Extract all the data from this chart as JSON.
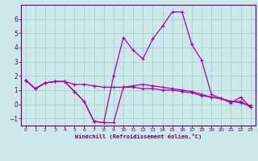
{
  "xlabel": "Windchill (Refroidissement éolien,°C)",
  "bg_color": "#cce8e8",
  "line_color": "#aa00aa",
  "grid_color": "#99cccc",
  "axis_color": "#660066",
  "spine_color": "#660066",
  "xlim": [
    -0.5,
    23.5
  ],
  "ylim": [
    -1.5,
    7.0
  ],
  "xticks": [
    0,
    1,
    2,
    3,
    4,
    5,
    6,
    7,
    8,
    9,
    10,
    11,
    12,
    13,
    14,
    15,
    16,
    17,
    18,
    19,
    20,
    21,
    22,
    23
  ],
  "yticks": [
    -1,
    0,
    1,
    2,
    3,
    4,
    5,
    6
  ],
  "x": [
    0,
    1,
    2,
    3,
    4,
    5,
    6,
    7,
    8,
    9,
    10,
    11,
    12,
    13,
    14,
    15,
    16,
    17,
    18,
    19,
    20,
    21,
    22,
    23
  ],
  "line1": [
    1.7,
    1.1,
    1.5,
    1.6,
    1.6,
    0.9,
    0.2,
    -1.2,
    -1.3,
    -1.3,
    1.2,
    1.3,
    1.4,
    1.3,
    1.2,
    1.1,
    1.0,
    0.9,
    0.7,
    0.5,
    0.4,
    0.2,
    0.2,
    -0.2
  ],
  "line2": [
    1.7,
    1.1,
    1.5,
    1.6,
    1.6,
    0.9,
    0.2,
    -1.2,
    -1.3,
    2.0,
    4.7,
    3.8,
    3.2,
    4.6,
    5.5,
    6.5,
    6.5,
    4.2,
    3.1,
    0.7,
    0.4,
    0.1,
    0.5,
    -0.2
  ],
  "line3": [
    1.7,
    1.1,
    1.5,
    1.6,
    1.6,
    1.4,
    1.4,
    1.3,
    1.2,
    1.2,
    1.2,
    1.2,
    1.1,
    1.1,
    1.0,
    1.0,
    0.9,
    0.8,
    0.6,
    0.5,
    0.4,
    0.2,
    0.1,
    -0.1
  ]
}
